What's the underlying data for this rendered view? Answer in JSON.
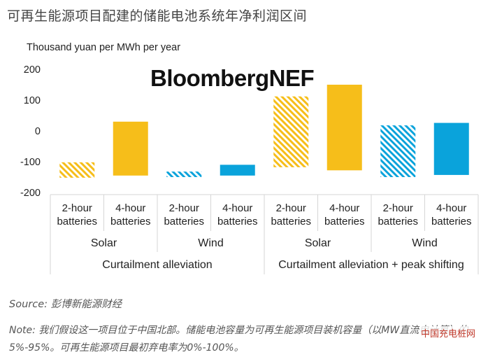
{
  "page": {
    "title": "可再生能源项目配建的储能电池系统年净利润区间",
    "unit_label": "Thousand yuan per MWh per year",
    "brand": "BloombergNEF",
    "source": "Source: 彭博新能源财经",
    "note": "Note: 我们假设这一项目位于中国北部。储能电池容量为可再生能源项目装机容量（以MW直流电计算）的5%-95%。可再生能源项目最初弃电率为0%-100%。",
    "watermark": "中国充电桩网"
  },
  "colors": {
    "solar": "#F6BE1A",
    "wind": "#0AA3DB",
    "axis": "#d6d6d6"
  },
  "chart_data": {
    "type": "bar",
    "subtype": "floating-range",
    "y_ticks": [
      "200",
      "100",
      "0",
      "-100",
      "-200"
    ],
    "ylim": [
      -200,
      200
    ],
    "groups": [
      {
        "label": "Curtailment alleviation",
        "subgroups": [
          "Solar",
          "Wind"
        ]
      },
      {
        "label": "Curtailment alleviation + peak shifting",
        "subgroups": [
          "Solar",
          "Wind"
        ]
      }
    ],
    "categories": [
      {
        "label": "2-hour\nbatteries",
        "tech": "Solar",
        "scenario": "Curtailment alleviation",
        "low": -152,
        "high": -102,
        "hatched": true
      },
      {
        "label": "4-hour\nbatteries",
        "tech": "Solar",
        "scenario": "Curtailment alleviation",
        "low": -145,
        "high": 30,
        "hatched": false
      },
      {
        "label": "2-hour\nbatteries",
        "tech": "Wind",
        "scenario": "Curtailment alleviation",
        "low": -150,
        "high": -132,
        "hatched": true
      },
      {
        "label": "4-hour\nbatteries",
        "tech": "Wind",
        "scenario": "Curtailment alleviation",
        "low": -145,
        "high": -110,
        "hatched": false
      },
      {
        "label": "2-hour\nbatteries",
        "tech": "Solar",
        "scenario": "Curtailment alleviation + peak shifting",
        "low": -118,
        "high": 112,
        "hatched": true
      },
      {
        "label": "4-hour\nbatteries",
        "tech": "Solar",
        "scenario": "Curtailment alleviation + peak shifting",
        "low": -128,
        "high": 150,
        "hatched": false
      },
      {
        "label": "2-hour\nbatteries",
        "tech": "Wind",
        "scenario": "Curtailment alleviation + peak shifting",
        "low": -150,
        "high": 18,
        "hatched": true
      },
      {
        "label": "4-hour\nbatteries",
        "tech": "Wind",
        "scenario": "Curtailment alleviation + peak shifting",
        "low": -143,
        "high": 26,
        "hatched": false
      }
    ]
  }
}
